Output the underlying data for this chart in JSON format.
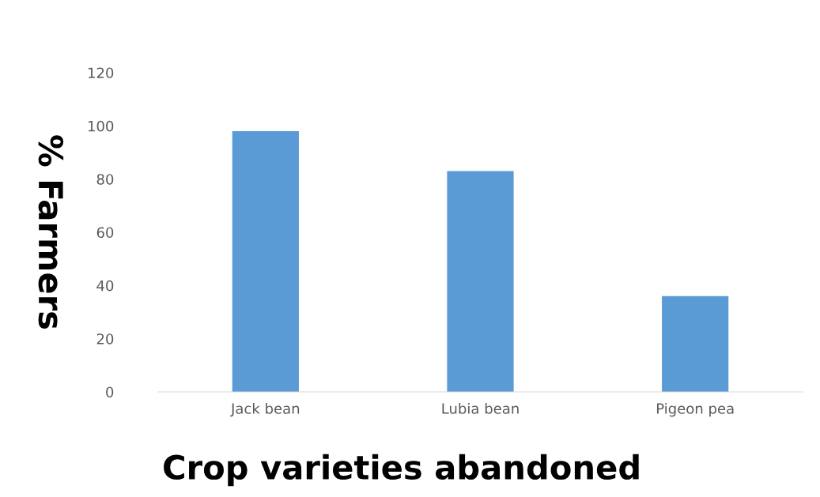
{
  "chart_data": {
    "type": "bar",
    "xlabel": "Crop varieties abandoned",
    "ylabel": "% Farmers",
    "categories": [
      "Jack bean",
      "Lubia bean",
      "Pigeon pea"
    ],
    "values": [
      98,
      83,
      36
    ],
    "color": "#5b9bd5",
    "ylim": [
      0,
      120
    ],
    "yticks": [
      0,
      20,
      40,
      60,
      80,
      100,
      120
    ],
    "grid": false,
    "legend": false
  }
}
